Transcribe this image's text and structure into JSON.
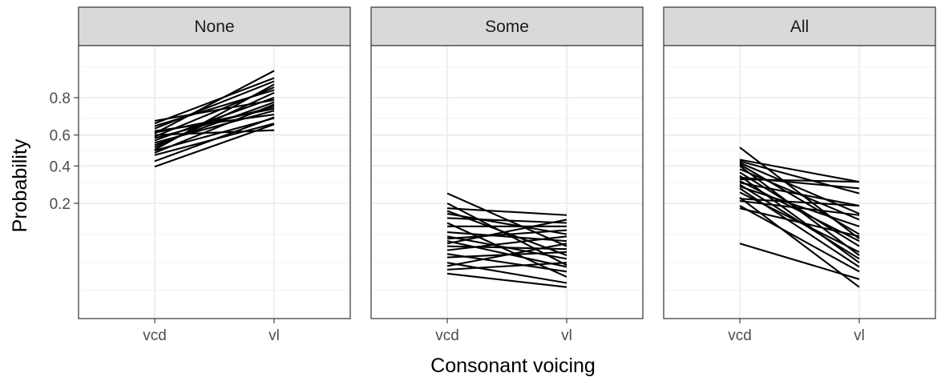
{
  "chart_data": {
    "type": "line",
    "xlabel": "Consonant voicing",
    "ylabel": "Probability",
    "categories": [
      "vcd",
      "vl"
    ],
    "y_scale": "logit",
    "ylim": [
      0.012,
      0.94
    ],
    "y_ticks": [
      0.2,
      0.4,
      0.6,
      0.8
    ],
    "y_minor": [
      0.025,
      0.05,
      0.1,
      0.3,
      0.5,
      0.7,
      0.9
    ],
    "grid": true,
    "legend": "none",
    "line_color": "#000000",
    "panels": [
      {
        "label": "None",
        "series": [
          {
            "values": [
              0.685,
              0.79
            ]
          },
          {
            "values": [
              0.67,
              0.87
            ]
          },
          {
            "values": [
              0.655,
              0.83
            ]
          },
          {
            "values": [
              0.64,
              0.86
            ]
          },
          {
            "values": [
              0.625,
              0.72
            ]
          },
          {
            "values": [
              0.61,
              0.89
            ]
          },
          {
            "values": [
              0.6,
              0.63
            ]
          },
          {
            "values": [
              0.59,
              0.84
            ]
          },
          {
            "values": [
              0.58,
              0.76
            ]
          },
          {
            "values": [
              0.565,
              0.8
            ]
          },
          {
            "values": [
              0.55,
              0.74
            ]
          },
          {
            "values": [
              0.535,
              0.78
            ]
          },
          {
            "values": [
              0.52,
              0.82
            ]
          },
          {
            "values": [
              0.5,
              0.7
            ]
          },
          {
            "values": [
              0.485,
              0.77
            ]
          },
          {
            "values": [
              0.47,
              0.67
            ]
          },
          {
            "values": [
              0.43,
              0.705
            ]
          },
          {
            "values": [
              0.395,
              0.665
            ]
          },
          {
            "values": [
              0.615,
              0.75
            ]
          },
          {
            "values": [
              0.505,
              0.85
            ]
          }
        ]
      },
      {
        "label": "Some",
        "series": [
          {
            "values": [
              0.245,
              0.075
            ]
          },
          {
            "values": [
              0.18,
              0.155
            ]
          },
          {
            "values": [
              0.17,
              0.06
            ]
          },
          {
            "values": [
              0.16,
              0.1
            ]
          },
          {
            "values": [
              0.145,
              0.13
            ]
          },
          {
            "values": [
              0.13,
              0.035
            ]
          },
          {
            "values": [
              0.12,
              0.12
            ]
          },
          {
            "values": [
              0.105,
              0.085
            ]
          },
          {
            "values": [
              0.095,
              0.055
            ]
          },
          {
            "values": [
              0.09,
              0.11
            ]
          },
          {
            "values": [
              0.085,
              0.045
            ]
          },
          {
            "values": [
              0.08,
              0.14
            ]
          },
          {
            "values": [
              0.075,
              0.07
            ]
          },
          {
            "values": [
              0.068,
              0.095
            ]
          },
          {
            "values": [
              0.062,
              0.04
            ]
          },
          {
            "values": [
              0.057,
              0.065
            ]
          },
          {
            "values": [
              0.05,
              0.03
            ]
          },
          {
            "values": [
              0.046,
              0.08
            ]
          },
          {
            "values": [
              0.042,
              0.05
            ]
          },
          {
            "values": [
              0.038,
              0.027
            ]
          },
          {
            "values": [
              0.2,
              0.047
            ]
          }
        ]
      },
      {
        "label": "All",
        "series": [
          {
            "values": [
              0.52,
              0.09
            ]
          },
          {
            "values": [
              0.44,
              0.305
            ]
          },
          {
            "values": [
              0.43,
              0.245
            ]
          },
          {
            "values": [
              0.42,
              0.16
            ]
          },
          {
            "values": [
              0.41,
              0.1
            ]
          },
          {
            "values": [
              0.4,
              0.06
            ]
          },
          {
            "values": [
              0.38,
              0.14
            ]
          },
          {
            "values": [
              0.36,
              0.075
            ]
          },
          {
            "values": [
              0.34,
              0.05
            ]
          },
          {
            "values": [
              0.33,
              0.27
            ]
          },
          {
            "values": [
              0.32,
              0.305
            ]
          },
          {
            "values": [
              0.31,
              0.085
            ]
          },
          {
            "values": [
              0.3,
              0.19
            ]
          },
          {
            "values": [
              0.29,
              0.055
            ]
          },
          {
            "values": [
              0.28,
              0.12
            ]
          },
          {
            "values": [
              0.27,
              0.045
            ]
          },
          {
            "values": [
              0.25,
              0.065
            ]
          },
          {
            "values": [
              0.22,
              0.19
            ]
          },
          {
            "values": [
              0.21,
              0.155
            ]
          },
          {
            "values": [
              0.19,
              0.04
            ]
          },
          {
            "values": [
              0.18,
              0.095
            ]
          },
          {
            "values": [
              0.08,
              0.033
            ]
          },
          {
            "values": [
              0.225,
              0.027
            ]
          }
        ]
      }
    ]
  }
}
